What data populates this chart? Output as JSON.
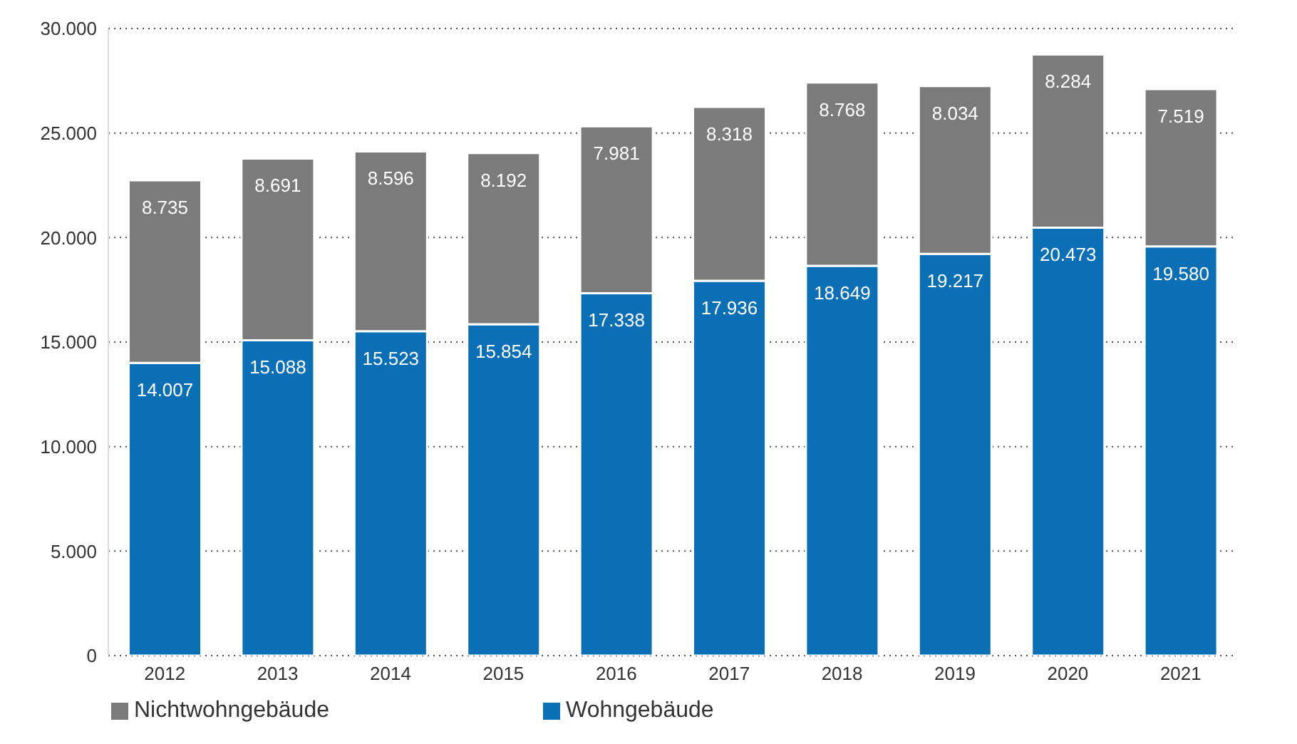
{
  "chart_data": {
    "type": "bar",
    "stacked": true,
    "categories": [
      "2012",
      "2013",
      "2014",
      "2015",
      "2016",
      "2017",
      "2018",
      "2019",
      "2020",
      "2021"
    ],
    "series": [
      {
        "name": "Wohngebäude",
        "color": "#0b6fb5",
        "values": [
          14007,
          15088,
          15523,
          15854,
          17338,
          17936,
          18649,
          19217,
          20473,
          19580
        ],
        "value_labels": [
          "14.007",
          "15.088",
          "15.523",
          "15.854",
          "17.338",
          "17.936",
          "18.649",
          "19.217",
          "20.473",
          "19.580"
        ]
      },
      {
        "name": "Nichtwohngebäude",
        "color": "#7b7b7b",
        "values": [
          8735,
          8691,
          8596,
          8192,
          7981,
          8318,
          8768,
          8034,
          8284,
          7519
        ],
        "value_labels": [
          "8.735",
          "8.691",
          "8.596",
          "8.192",
          "7.981",
          "8.318",
          "8.768",
          "8.034",
          "8.284",
          "7.519"
        ]
      }
    ],
    "ylim": [
      0,
      30000
    ],
    "yticks": [
      {
        "value": 0,
        "label": "0"
      },
      {
        "value": 5000,
        "label": "5.000"
      },
      {
        "value": 10000,
        "label": "10.000"
      },
      {
        "value": 15000,
        "label": "15.000"
      },
      {
        "value": 20000,
        "label": "20.000"
      },
      {
        "value": 25000,
        "label": "25.000"
      },
      {
        "value": 30000,
        "label": "30.000"
      }
    ],
    "grid": "y",
    "legend": "bottom left"
  }
}
